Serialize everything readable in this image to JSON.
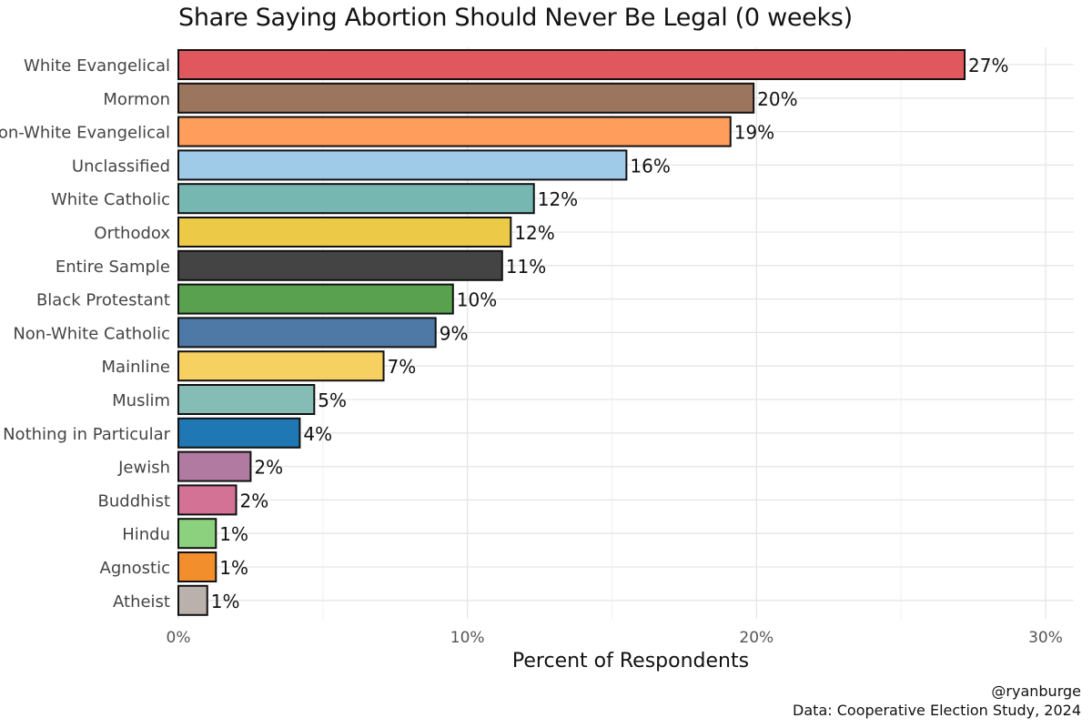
{
  "chart_data": {
    "type": "bar",
    "orientation": "horizontal",
    "title": "Share Saying Abortion Should Never Be Legal (0 weeks)",
    "xlabel": "Percent of Respondents",
    "ylabel": "",
    "xlim": [
      0,
      0.3
    ],
    "xticks": [
      0,
      0.1,
      0.2,
      0.3
    ],
    "xtick_labels": [
      "0%",
      "10%",
      "20%",
      "30%"
    ],
    "grid": true,
    "bars": [
      {
        "label": "White Evangelical",
        "value": 0.272,
        "text": "27%",
        "color": "#E0575D"
      },
      {
        "label": "Mormon",
        "value": 0.199,
        "text": "20%",
        "color": "#9C755F"
      },
      {
        "label": "Non-White Evangelical",
        "value": 0.191,
        "text": "19%",
        "color": "#FF9D5C"
      },
      {
        "label": "Unclassified",
        "value": 0.155,
        "text": "16%",
        "color": "#A0CBE8"
      },
      {
        "label": "White Catholic",
        "value": 0.123,
        "text": "12%",
        "color": "#76B7B2"
      },
      {
        "label": "Orthodox",
        "value": 0.115,
        "text": "12%",
        "color": "#EDC948"
      },
      {
        "label": "Entire Sample",
        "value": 0.112,
        "text": "11%",
        "color": "#444444"
      },
      {
        "label": "Black Protestant",
        "value": 0.095,
        "text": "10%",
        "color": "#59A14F"
      },
      {
        "label": "Non-White Catholic",
        "value": 0.089,
        "text": "9%",
        "color": "#4E79A7"
      },
      {
        "label": "Mainline",
        "value": 0.071,
        "text": "7%",
        "color": "#F6D060"
      },
      {
        "label": "Muslim",
        "value": 0.047,
        "text": "5%",
        "color": "#86BCB6"
      },
      {
        "label": "Nothing in Particular",
        "value": 0.042,
        "text": "4%",
        "color": "#1F77B4"
      },
      {
        "label": "Jewish",
        "value": 0.025,
        "text": "2%",
        "color": "#B07AA1"
      },
      {
        "label": "Buddhist",
        "value": 0.02,
        "text": "2%",
        "color": "#D37295"
      },
      {
        "label": "Hindu",
        "value": 0.013,
        "text": "1%",
        "color": "#8CD17D"
      },
      {
        "label": "Agnostic",
        "value": 0.013,
        "text": "1%",
        "color": "#F28E2B"
      },
      {
        "label": "Atheist",
        "value": 0.01,
        "text": "1%",
        "color": "#BAB0AC"
      }
    ]
  },
  "caption": {
    "handle": "@ryanburge",
    "source": "Data: Cooperative Election Study, 2024"
  }
}
